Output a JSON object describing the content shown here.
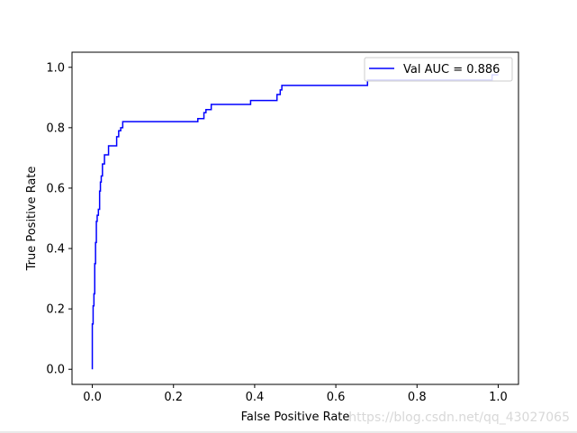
{
  "chart_data": {
    "type": "line",
    "title": "",
    "xlabel": "False Positive Rate",
    "ylabel": "True Positive Rate",
    "xlim": [
      -0.05,
      1.05
    ],
    "ylim": [
      -0.05,
      1.05
    ],
    "xticks": [
      "0.0",
      "0.2",
      "0.4",
      "0.6",
      "0.8",
      "1.0"
    ],
    "yticks": [
      "0.0",
      "0.2",
      "0.4",
      "0.6",
      "0.8",
      "1.0"
    ],
    "grid": false,
    "legend_position": "upper right",
    "series": [
      {
        "name": "Val AUC = 0.886",
        "color": "#0000ff",
        "x": [
          0.0,
          0.0,
          0.002,
          0.002,
          0.004,
          0.004,
          0.006,
          0.006,
          0.008,
          0.008,
          0.01,
          0.01,
          0.012,
          0.012,
          0.015,
          0.015,
          0.018,
          0.018,
          0.02,
          0.02,
          0.022,
          0.022,
          0.025,
          0.025,
          0.03,
          0.03,
          0.04,
          0.04,
          0.06,
          0.06,
          0.065,
          0.065,
          0.07,
          0.07,
          0.075,
          0.075,
          0.26,
          0.26,
          0.275,
          0.275,
          0.28,
          0.28,
          0.293,
          0.293,
          0.39,
          0.39,
          0.455,
          0.455,
          0.463,
          0.463,
          0.467,
          0.467,
          0.678,
          0.678,
          0.985,
          0.985,
          1.0
        ],
        "y": [
          0.0,
          0.15,
          0.15,
          0.21,
          0.21,
          0.25,
          0.25,
          0.35,
          0.35,
          0.42,
          0.42,
          0.49,
          0.49,
          0.51,
          0.51,
          0.53,
          0.53,
          0.59,
          0.59,
          0.62,
          0.62,
          0.64,
          0.64,
          0.68,
          0.68,
          0.71,
          0.71,
          0.74,
          0.74,
          0.77,
          0.77,
          0.79,
          0.79,
          0.8,
          0.8,
          0.82,
          0.82,
          0.83,
          0.83,
          0.85,
          0.85,
          0.86,
          0.86,
          0.877,
          0.877,
          0.89,
          0.89,
          0.91,
          0.91,
          0.925,
          0.925,
          0.94,
          0.94,
          0.958,
          0.958,
          0.975,
          0.975
        ]
      }
    ]
  },
  "watermark": "https://blog.csdn.net/qq_43027065"
}
